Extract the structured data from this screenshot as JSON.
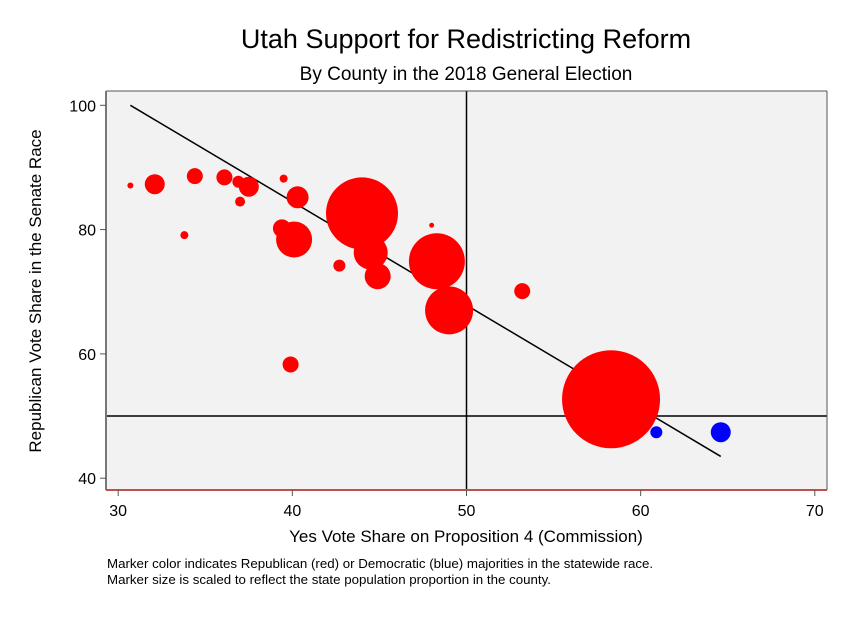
{
  "chart_data": {
    "type": "scatter",
    "title": "Utah Support for Redistricting Reform",
    "subtitle": "By County in the 2018 General Election",
    "xlabel": "Yes Vote Share on Proposition 4 (Commission)",
    "ylabel": "Republican Vote Share in the Senate Race",
    "xlim": [
      29.3,
      70.7
    ],
    "ylim": [
      38.1,
      102.3
    ],
    "xticks": [
      30,
      40,
      50,
      60,
      70
    ],
    "yticks": [
      40,
      60,
      80,
      100
    ],
    "grid": false,
    "reference_lines": {
      "x": 50,
      "y": 50
    },
    "fit_line": {
      "x": [
        30.7,
        64.6
      ],
      "y": [
        100,
        43.5
      ]
    },
    "colors": {
      "republican": "#ff0000",
      "democratic": "#0000ff",
      "plot_background": "#f2f2f2",
      "line": "#000000"
    },
    "series": [
      {
        "name": "Republican majority",
        "color": "#ff0000",
        "points": [
          {
            "x": 30.7,
            "y": 87.1,
            "size": 0.09
          },
          {
            "x": 32.1,
            "y": 87.3,
            "size": 1.0
          },
          {
            "x": 34.4,
            "y": 88.6,
            "size": 0.64
          },
          {
            "x": 33.8,
            "y": 79.1,
            "size": 0.16
          },
          {
            "x": 36.1,
            "y": 88.4,
            "size": 0.64
          },
          {
            "x": 36.9,
            "y": 87.7,
            "size": 0.36
          },
          {
            "x": 37.5,
            "y": 86.9,
            "size": 1.0
          },
          {
            "x": 37.0,
            "y": 84.5,
            "size": 0.25
          },
          {
            "x": 39.5,
            "y": 88.2,
            "size": 0.16
          },
          {
            "x": 40.3,
            "y": 85.2,
            "size": 1.21
          },
          {
            "x": 39.4,
            "y": 80.2,
            "size": 0.81
          },
          {
            "x": 40.1,
            "y": 78.4,
            "size": 3.24
          },
          {
            "x": 39.9,
            "y": 58.3,
            "size": 0.64
          },
          {
            "x": 42.7,
            "y": 74.2,
            "size": 0.36
          },
          {
            "x": 44.0,
            "y": 82.6,
            "size": 12.96
          },
          {
            "x": 44.5,
            "y": 76.3,
            "size": 2.89
          },
          {
            "x": 44.9,
            "y": 72.5,
            "size": 1.69
          },
          {
            "x": 48.0,
            "y": 80.7,
            "size": 0.06
          },
          {
            "x": 48.3,
            "y": 74.9,
            "size": 7.84
          },
          {
            "x": 49.0,
            "y": 67.0,
            "size": 5.76
          },
          {
            "x": 53.2,
            "y": 70.1,
            "size": 0.64
          },
          {
            "x": 58.3,
            "y": 52.7,
            "size": 24.01
          }
        ]
      },
      {
        "name": "Democratic majority",
        "color": "#0000ff",
        "points": [
          {
            "x": 60.9,
            "y": 47.4,
            "size": 0.36
          },
          {
            "x": 64.6,
            "y": 47.4,
            "size": 1.0
          }
        ]
      }
    ],
    "notes": [
      "Marker color indicates Republican (red) or Democratic (blue) majorities in the statewide race.",
      "Marker size is scaled to reflect the state population proportion in the county."
    ]
  }
}
